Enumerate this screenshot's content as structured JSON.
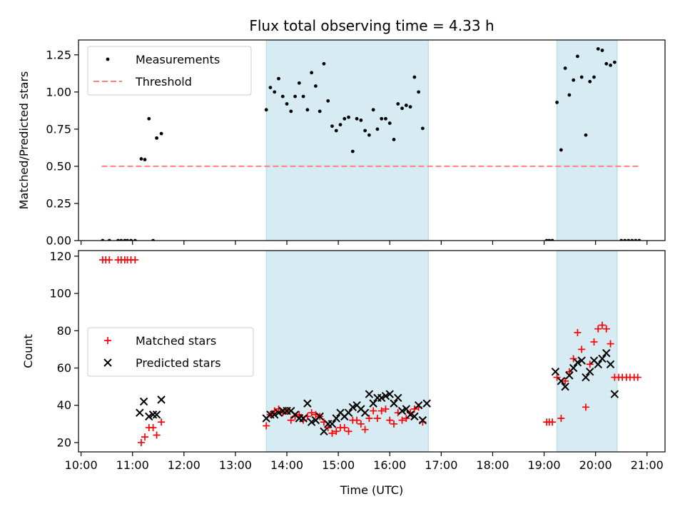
{
  "chart_data": {
    "title": "Flux total observing time = 4.33 h",
    "xlabel": "Time (UTC)",
    "x_unit": "hours UTC",
    "xlim": [
      9.95,
      21.35
    ],
    "x_ticks": [
      {
        "v": 10,
        "label": "10:00"
      },
      {
        "v": 11,
        "label": "11:00"
      },
      {
        "v": 12,
        "label": "12:00"
      },
      {
        "v": 13,
        "label": "13:00"
      },
      {
        "v": 14,
        "label": "14:00"
      },
      {
        "v": 15,
        "label": "15:00"
      },
      {
        "v": 16,
        "label": "16:00"
      },
      {
        "v": 17,
        "label": "17:00"
      },
      {
        "v": 18,
        "label": "18:00"
      },
      {
        "v": 19,
        "label": "19:00"
      },
      {
        "v": 20,
        "label": "20:00"
      },
      {
        "v": 21,
        "label": "21:00"
      }
    ],
    "observing_windows": [
      [
        13.6,
        16.75
      ],
      [
        19.25,
        20.42
      ]
    ],
    "window_color": "#add8e6",
    "panels": [
      {
        "type": "scatter",
        "ylabel": "Matched/Predicted stars",
        "ylim": [
          0,
          1.35
        ],
        "y_ticks": [
          {
            "v": 0,
            "label": "0.00"
          },
          {
            "v": 0.25,
            "label": "0.25"
          },
          {
            "v": 0.5,
            "label": "0.50"
          },
          {
            "v": 0.75,
            "label": "0.75"
          },
          {
            "v": 1.0,
            "label": "1.00"
          },
          {
            "v": 1.25,
            "label": "1.25"
          }
        ],
        "legend_position": "upper-left",
        "legend": [
          {
            "label": "Measurements",
            "marker": "dot",
            "color": "#000000"
          },
          {
            "label": "Threshold",
            "marker": "dash",
            "color": "#ff7f7f"
          }
        ],
        "threshold": {
          "value": 0.5,
          "x_range": [
            10.4,
            20.85
          ],
          "color": "#ff7f7f"
        },
        "measurements": [
          [
            10.42,
            0
          ],
          [
            10.55,
            0
          ],
          [
            10.72,
            0
          ],
          [
            10.78,
            0
          ],
          [
            10.85,
            0
          ],
          [
            10.9,
            0
          ],
          [
            10.97,
            0
          ],
          [
            11.05,
            0
          ],
          [
            11.17,
            0.55
          ],
          [
            11.24,
            0.545
          ],
          [
            11.32,
            0.82
          ],
          [
            11.4,
            0
          ],
          [
            11.47,
            0.69
          ],
          [
            11.56,
            0.72
          ],
          [
            13.6,
            0.88
          ],
          [
            13.68,
            1.03
          ],
          [
            13.76,
            1.0
          ],
          [
            13.84,
            1.09
          ],
          [
            13.92,
            0.97
          ],
          [
            14.0,
            0.92
          ],
          [
            14.08,
            0.87
          ],
          [
            14.16,
            0.97
          ],
          [
            14.24,
            1.06
          ],
          [
            14.32,
            0.97
          ],
          [
            14.4,
            0.88
          ],
          [
            14.48,
            1.13
          ],
          [
            14.56,
            1.04
          ],
          [
            14.64,
            0.87
          ],
          [
            14.72,
            1.19
          ],
          [
            14.8,
            0.94
          ],
          [
            14.88,
            0.77
          ],
          [
            14.96,
            0.74
          ],
          [
            15.04,
            0.78
          ],
          [
            15.12,
            0.82
          ],
          [
            15.2,
            0.83
          ],
          [
            15.28,
            0.6
          ],
          [
            15.36,
            0.82
          ],
          [
            15.44,
            0.81
          ],
          [
            15.52,
            0.74
          ],
          [
            15.6,
            0.71
          ],
          [
            15.68,
            0.88
          ],
          [
            15.76,
            0.75
          ],
          [
            15.84,
            0.82
          ],
          [
            15.92,
            0.82
          ],
          [
            16.0,
            0.79
          ],
          [
            16.08,
            0.68
          ],
          [
            16.16,
            0.92
          ],
          [
            16.24,
            0.89
          ],
          [
            16.32,
            0.91
          ],
          [
            16.4,
            0.9
          ],
          [
            16.48,
            1.1
          ],
          [
            16.56,
            1.0
          ],
          [
            16.64,
            0.755
          ],
          [
            19.05,
            0
          ],
          [
            19.1,
            0
          ],
          [
            19.16,
            0
          ],
          [
            19.25,
            0.93
          ],
          [
            19.33,
            0.61
          ],
          [
            19.41,
            1.16
          ],
          [
            19.49,
            0.98
          ],
          [
            19.57,
            1.08
          ],
          [
            19.65,
            1.24
          ],
          [
            19.73,
            1.1
          ],
          [
            19.81,
            0.71
          ],
          [
            19.89,
            1.07
          ],
          [
            19.97,
            1.1
          ],
          [
            20.05,
            1.29
          ],
          [
            20.13,
            1.28
          ],
          [
            20.21,
            1.19
          ],
          [
            20.29,
            1.18
          ],
          [
            20.37,
            1.2
          ],
          [
            20.5,
            0
          ],
          [
            20.57,
            0
          ],
          [
            20.64,
            0
          ],
          [
            20.71,
            0
          ],
          [
            20.78,
            0
          ],
          [
            20.85,
            0
          ]
        ]
      },
      {
        "type": "scatter",
        "ylabel": "Count",
        "ylim": [
          15,
          123
        ],
        "y_ticks": [
          {
            "v": 20,
            "label": "20"
          },
          {
            "v": 40,
            "label": "40"
          },
          {
            "v": 60,
            "label": "60"
          },
          {
            "v": 80,
            "label": "80"
          },
          {
            "v": 100,
            "label": "100"
          },
          {
            "v": 120,
            "label": "120"
          }
        ],
        "legend_position": "center-left",
        "legend": [
          {
            "label": "Matched stars",
            "marker": "plus",
            "color": "#ff0000"
          },
          {
            "label": "Predicted stars",
            "marker": "x",
            "color": "#000000"
          }
        ],
        "matched": [
          [
            10.42,
            118
          ],
          [
            10.48,
            118
          ],
          [
            10.55,
            118
          ],
          [
            10.72,
            118
          ],
          [
            10.78,
            118
          ],
          [
            10.85,
            118
          ],
          [
            10.9,
            118
          ],
          [
            10.97,
            118
          ],
          [
            11.05,
            118
          ],
          [
            11.17,
            20
          ],
          [
            11.24,
            23
          ],
          [
            11.32,
            28
          ],
          [
            11.4,
            28
          ],
          [
            11.47,
            24
          ],
          [
            11.56,
            31
          ],
          [
            13.6,
            29
          ],
          [
            13.68,
            35
          ],
          [
            13.76,
            37
          ],
          [
            13.84,
            38
          ],
          [
            13.92,
            36
          ],
          [
            14.0,
            37
          ],
          [
            14.08,
            32
          ],
          [
            14.16,
            34
          ],
          [
            14.24,
            35
          ],
          [
            14.32,
            32
          ],
          [
            14.4,
            34
          ],
          [
            14.48,
            36
          ],
          [
            14.56,
            35
          ],
          [
            14.64,
            34
          ],
          [
            14.72,
            31
          ],
          [
            14.8,
            28
          ],
          [
            14.88,
            25
          ],
          [
            14.96,
            26
          ],
          [
            15.04,
            28
          ],
          [
            15.12,
            28
          ],
          [
            15.2,
            26
          ],
          [
            15.28,
            32
          ],
          [
            15.36,
            32
          ],
          [
            15.44,
            30
          ],
          [
            15.52,
            27
          ],
          [
            15.6,
            33
          ],
          [
            15.68,
            37
          ],
          [
            15.76,
            33
          ],
          [
            15.84,
            37
          ],
          [
            15.92,
            38
          ],
          [
            16.0,
            32
          ],
          [
            16.08,
            30
          ],
          [
            16.16,
            36
          ],
          [
            16.24,
            32
          ],
          [
            16.32,
            33
          ],
          [
            16.4,
            36
          ],
          [
            16.48,
            38
          ],
          [
            16.56,
            39
          ],
          [
            16.64,
            31
          ],
          [
            19.05,
            31
          ],
          [
            19.1,
            31
          ],
          [
            19.16,
            31
          ],
          [
            19.25,
            55
          ],
          [
            19.33,
            33
          ],
          [
            19.41,
            53
          ],
          [
            19.49,
            58
          ],
          [
            19.57,
            65
          ],
          [
            19.65,
            79
          ],
          [
            19.73,
            70
          ],
          [
            19.81,
            39
          ],
          [
            19.89,
            62
          ],
          [
            19.97,
            74
          ],
          [
            20.05,
            81
          ],
          [
            20.13,
            83
          ],
          [
            20.21,
            81
          ],
          [
            20.29,
            73
          ],
          [
            20.37,
            55
          ],
          [
            20.45,
            55
          ],
          [
            20.52,
            55
          ],
          [
            20.6,
            55
          ],
          [
            20.67,
            55
          ],
          [
            20.75,
            55
          ],
          [
            20.82,
            55
          ]
        ],
        "predicted": [
          [
            11.14,
            36
          ],
          [
            11.22,
            42
          ],
          [
            11.32,
            34
          ],
          [
            11.4,
            35
          ],
          [
            11.47,
            35
          ],
          [
            11.56,
            43
          ],
          [
            13.6,
            33
          ],
          [
            13.68,
            35
          ],
          [
            13.76,
            35
          ],
          [
            13.84,
            36
          ],
          [
            13.92,
            37
          ],
          [
            14.0,
            37
          ],
          [
            14.08,
            37
          ],
          [
            14.16,
            35
          ],
          [
            14.24,
            33
          ],
          [
            14.32,
            33
          ],
          [
            14.4,
            41
          ],
          [
            14.48,
            31
          ],
          [
            14.56,
            32
          ],
          [
            14.64,
            34
          ],
          [
            14.72,
            26
          ],
          [
            14.8,
            30
          ],
          [
            14.88,
            30
          ],
          [
            14.96,
            33
          ],
          [
            15.04,
            36
          ],
          [
            15.12,
            34
          ],
          [
            15.2,
            36
          ],
          [
            15.28,
            39
          ],
          [
            15.36,
            40
          ],
          [
            15.44,
            38
          ],
          [
            15.52,
            36
          ],
          [
            15.6,
            46
          ],
          [
            15.68,
            41
          ],
          [
            15.76,
            44
          ],
          [
            15.84,
            44
          ],
          [
            15.92,
            45
          ],
          [
            16.0,
            46
          ],
          [
            16.08,
            41
          ],
          [
            16.16,
            44
          ],
          [
            16.24,
            37
          ],
          [
            16.32,
            38
          ],
          [
            16.4,
            35
          ],
          [
            16.48,
            34
          ],
          [
            16.56,
            40
          ],
          [
            16.64,
            32
          ],
          [
            16.72,
            41
          ],
          [
            19.22,
            58
          ],
          [
            19.33,
            53
          ],
          [
            19.41,
            50
          ],
          [
            19.49,
            56
          ],
          [
            19.57,
            60
          ],
          [
            19.65,
            63
          ],
          [
            19.73,
            64
          ],
          [
            19.81,
            55
          ],
          [
            19.89,
            58
          ],
          [
            19.97,
            64
          ],
          [
            20.05,
            62
          ],
          [
            20.13,
            65
          ],
          [
            20.21,
            68
          ],
          [
            20.29,
            62
          ],
          [
            20.37,
            46
          ]
        ]
      }
    ]
  }
}
